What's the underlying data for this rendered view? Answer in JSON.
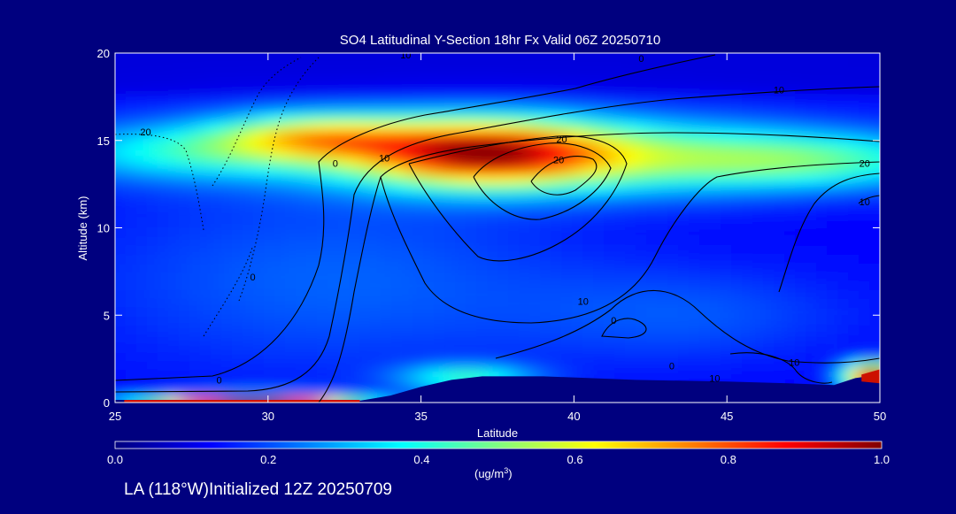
{
  "footer": {
    "location_label": "LA (118°W)Initialized 12Z 20250709"
  },
  "chart_data": {
    "type": "heatmap",
    "title": "SO4 Latitudinal Y-Section 18hr  Fx Valid 06Z 20250710",
    "xlabel": "Latitude",
    "ylabel": "Altitude (km)",
    "xlim": [
      25,
      50
    ],
    "ylim": [
      0,
      20
    ],
    "xticks": [
      25,
      30,
      35,
      40,
      45,
      50
    ],
    "yticks": [
      0,
      5,
      10,
      15,
      20
    ],
    "colorbar": {
      "label_text": "(ug/m",
      "label_super": "3",
      "label_close": ")",
      "min": 0.0,
      "max": 1.0,
      "ticks": [
        "0.0",
        "0.2",
        "0.4",
        "0.6",
        "0.8",
        "1.0"
      ],
      "colors": [
        "#00007f",
        "#0000ff",
        "#0080ff",
        "#00ffff",
        "#80ff80",
        "#ffff00",
        "#ff8000",
        "#ff0000",
        "#7f0000"
      ]
    },
    "grid": false,
    "field_blobs": [
      {
        "lat": 37.0,
        "alt": 14.3,
        "slat": 2.8,
        "salt": 1.3,
        "amp": 0.55
      },
      {
        "lat": 31.5,
        "alt": 15.2,
        "slat": 2.3,
        "salt": 0.9,
        "amp": 0.35
      },
      {
        "lat": 33.5,
        "alt": 14.6,
        "slat": 7.0,
        "salt": 1.6,
        "amp": 0.15
      },
      {
        "lat": 42.0,
        "alt": 14.0,
        "slat": 6.0,
        "salt": 1.5,
        "amp": 0.28
      },
      {
        "lat": 48.0,
        "alt": 13.8,
        "slat": 3.5,
        "salt": 1.0,
        "amp": 0.2
      },
      {
        "lat": 27.0,
        "alt": 14.3,
        "slat": 3.0,
        "salt": 1.0,
        "amp": 0.17
      },
      {
        "lat": 32.0,
        "alt": 7.0,
        "slat": 6.0,
        "salt": 4.0,
        "amp": 0.1
      },
      {
        "lat": 44.0,
        "alt": 5.0,
        "slat": 4.0,
        "salt": 2.0,
        "amp": 0.08
      },
      {
        "lat": 49.8,
        "alt": 1.5,
        "slat": 0.7,
        "salt": 0.5,
        "amp": 0.85
      },
      {
        "lat": 29.5,
        "alt": 0.1,
        "slat": 2.5,
        "salt": 0.25,
        "amp": 0.85
      },
      {
        "lat": 36.5,
        "alt": 1.4,
        "slat": 1.6,
        "salt": 0.5,
        "amp": 0.3
      }
    ],
    "field_base": 0.12,
    "contour_labels": [
      {
        "text": "10",
        "lat": 34.5,
        "alt": 19.9
      },
      {
        "text": "0",
        "lat": 42.2,
        "alt": 19.7
      },
      {
        "text": "10",
        "lat": 46.7,
        "alt": 17.9
      },
      {
        "text": "20",
        "lat": 26.0,
        "alt": 15.5
      },
      {
        "text": "20",
        "lat": 39.6,
        "alt": 15.1
      },
      {
        "text": "20",
        "lat": 39.5,
        "alt": 13.9
      },
      {
        "text": "10",
        "lat": 33.8,
        "alt": 14.0
      },
      {
        "text": "0",
        "lat": 32.2,
        "alt": 13.7
      },
      {
        "text": "20",
        "lat": 49.5,
        "alt": 13.7
      },
      {
        "text": "10",
        "lat": 49.5,
        "alt": 11.5
      },
      {
        "text": "0",
        "lat": 29.5,
        "alt": 7.2
      },
      {
        "text": "10",
        "lat": 40.3,
        "alt": 5.8
      },
      {
        "text": "0",
        "lat": 41.3,
        "alt": 4.7
      },
      {
        "text": "0",
        "lat": 28.4,
        "alt": 1.3
      },
      {
        "text": "10",
        "lat": 47.2,
        "alt": 2.3
      },
      {
        "text": "0",
        "lat": 43.2,
        "alt": 2.1
      },
      {
        "text": "10",
        "lat": 44.6,
        "alt": 1.4
      }
    ]
  }
}
